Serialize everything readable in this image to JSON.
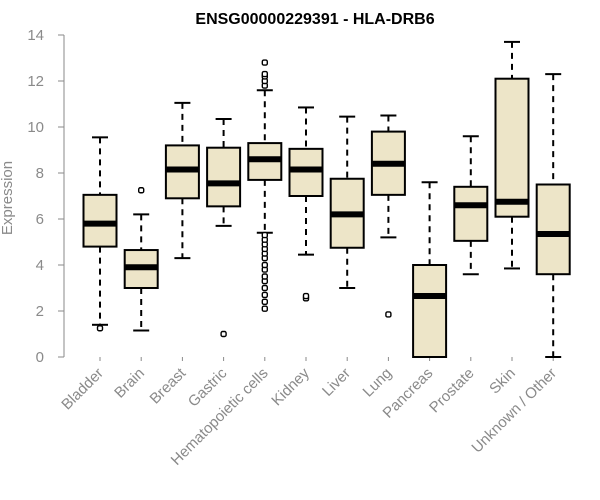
{
  "chart_data": {
    "type": "box",
    "title": "ENSG00000229391 - HLA-DRB6",
    "xlabel": "",
    "ylabel": "Expression",
    "ylim": [
      0,
      14
    ],
    "yticks": [
      0,
      2,
      4,
      6,
      8,
      10,
      12,
      14
    ],
    "grid": false,
    "box_color": "#ede5c8",
    "categories": [
      "Bladder",
      "Brain",
      "Breast",
      "Gastric",
      "Hematopoietic cells",
      "Kidney",
      "Liver",
      "Lung",
      "Pancreas",
      "Prostate",
      "Skin",
      "Unknown / Other"
    ],
    "boxes": [
      {
        "whisker_low": 1.4,
        "q1": 4.8,
        "median": 5.8,
        "q3": 7.05,
        "whisker_high": 9.55,
        "outliers": [
          1.25
        ]
      },
      {
        "whisker_low": 1.15,
        "q1": 3.0,
        "median": 3.9,
        "q3": 4.65,
        "whisker_high": 6.2,
        "outliers": [
          7.25
        ]
      },
      {
        "whisker_low": 4.3,
        "q1": 6.9,
        "median": 8.15,
        "q3": 9.2,
        "whisker_high": 11.05,
        "outliers": []
      },
      {
        "whisker_low": 5.7,
        "q1": 6.55,
        "median": 7.55,
        "q3": 9.1,
        "whisker_high": 10.35,
        "outliers": [
          1.0
        ]
      },
      {
        "whisker_low": 5.4,
        "q1": 7.7,
        "median": 8.6,
        "q3": 9.3,
        "whisker_high": 11.6,
        "outliers": [
          2.1,
          2.4,
          2.7,
          3.0,
          3.3,
          3.5,
          3.8,
          4.0,
          4.3,
          4.5,
          4.7,
          4.9,
          5.1,
          5.3,
          11.8,
          12.0,
          12.2,
          12.3,
          12.8
        ]
      },
      {
        "whisker_low": 4.45,
        "q1": 7.0,
        "median": 8.15,
        "q3": 9.05,
        "whisker_high": 10.85,
        "outliers": [
          2.55,
          2.65
        ]
      },
      {
        "whisker_low": 3.0,
        "q1": 4.75,
        "median": 6.2,
        "q3": 7.75,
        "whisker_high": 10.45,
        "outliers": []
      },
      {
        "whisker_low": 5.2,
        "q1": 7.05,
        "median": 8.4,
        "q3": 9.8,
        "whisker_high": 10.5,
        "outliers": [
          1.85
        ]
      },
      {
        "whisker_low": 0.0,
        "q1": 0.0,
        "median": 2.65,
        "q3": 4.0,
        "whisker_high": 7.6,
        "outliers": []
      },
      {
        "whisker_low": 3.6,
        "q1": 5.05,
        "median": 6.6,
        "q3": 7.4,
        "whisker_high": 9.6,
        "outliers": []
      },
      {
        "whisker_low": 3.85,
        "q1": 6.1,
        "median": 6.75,
        "q3": 12.1,
        "whisker_high": 13.7,
        "outliers": []
      },
      {
        "whisker_low": 0.0,
        "q1": 3.6,
        "median": 5.35,
        "q3": 7.5,
        "whisker_high": 12.3,
        "outliers": []
      }
    ]
  }
}
